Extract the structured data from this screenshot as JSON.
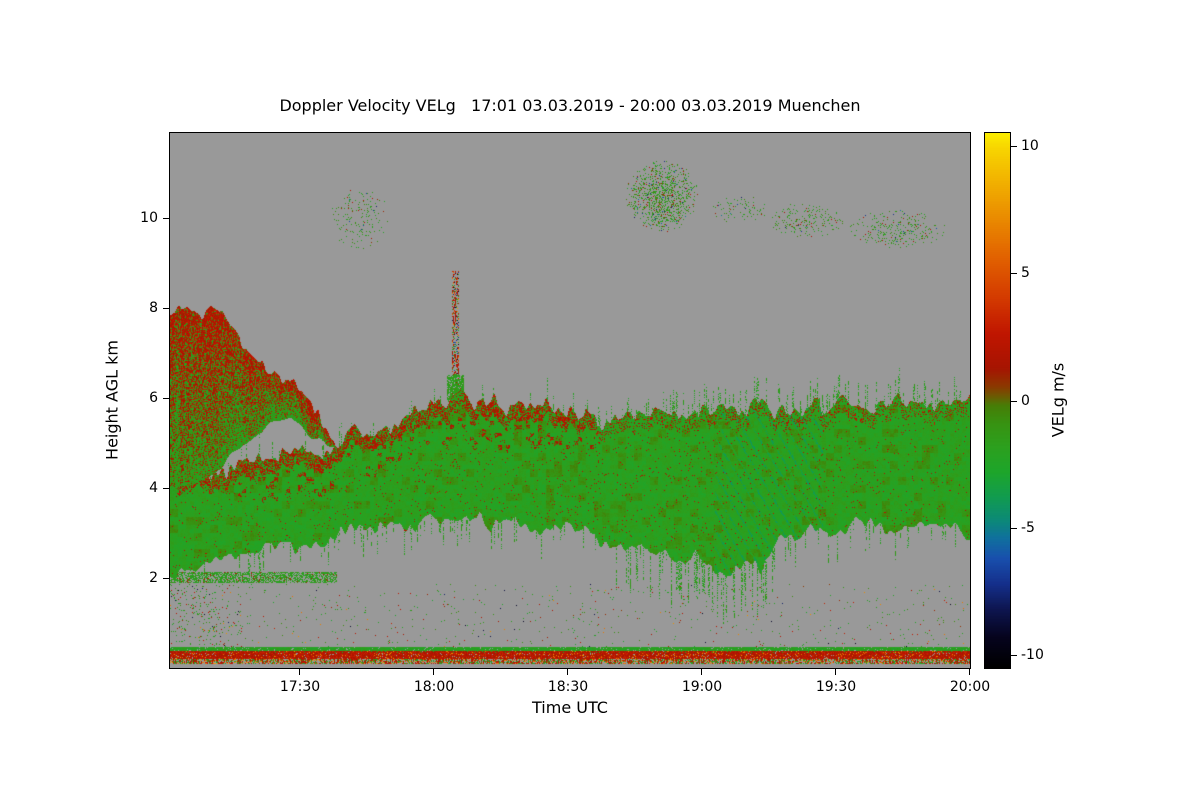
{
  "title": "Doppler Velocity VELg   17:01 03.03.2019 - 20:00 03.03.2019 Muenchen",
  "axes": {
    "x_label": "Time UTC",
    "y_label": "Height AGL km",
    "x_ticks": [
      {
        "label": "17:30",
        "t": 29
      },
      {
        "label": "18:00",
        "t": 59
      },
      {
        "label": "18:30",
        "t": 89
      },
      {
        "label": "19:00",
        "t": 119
      },
      {
        "label": "19:30",
        "t": 149
      },
      {
        "label": "20:00",
        "t": 179
      }
    ],
    "y_ticks": [
      {
        "label": "2",
        "km": 2
      },
      {
        "label": "4",
        "km": 4
      },
      {
        "label": "6",
        "km": 6
      },
      {
        "label": "8",
        "km": 8
      },
      {
        "label": "10",
        "km": 10
      }
    ]
  },
  "colorbar": {
    "label": "VELg m/s",
    "ticks": [
      {
        "label": "10",
        "v": 10
      },
      {
        "label": "5",
        "v": 5
      },
      {
        "label": "0",
        "v": 0
      },
      {
        "label": "-5",
        "v": -5
      },
      {
        "label": "-10",
        "v": -10
      }
    ],
    "v_min": -10.5,
    "v_max": 10.5,
    "stops": [
      [
        -10.5,
        "#000000"
      ],
      [
        -9.3,
        "#06041e"
      ],
      [
        -8.2,
        "#0e1650"
      ],
      [
        -7.2,
        "#15308c"
      ],
      [
        -6.2,
        "#1950ae"
      ],
      [
        -5.4,
        "#10719e"
      ],
      [
        -4.7,
        "#0c8a78"
      ],
      [
        -3.8,
        "#129c50"
      ],
      [
        -2.8,
        "#1ea62b"
      ],
      [
        -1.8,
        "#2da01e"
      ],
      [
        -0.9,
        "#389312"
      ],
      [
        -0.2,
        "#477e07"
      ],
      [
        0.15,
        "#6b5c03"
      ],
      [
        0.55,
        "#8c3800"
      ],
      [
        1.3,
        "#a81402"
      ],
      [
        2.6,
        "#c01600"
      ],
      [
        4.0,
        "#d43a00"
      ],
      [
        5.6,
        "#e26200"
      ],
      [
        7.1,
        "#ea8a00"
      ],
      [
        8.6,
        "#f2b200"
      ],
      [
        9.9,
        "#f8d600"
      ],
      [
        10.5,
        "#fcee00"
      ]
    ]
  },
  "chart_data": {
    "type": "heatmap",
    "title": "Doppler Velocity VELg   17:01 03.03.2019 - 20:00 03.03.2019 Muenchen",
    "site": "Muenchen",
    "variable": "VELg",
    "value_units": "m/s",
    "time_start": "17:01 03.03.2019",
    "time_end": "20:00 03.03.2019",
    "x_range_minutes": [
      0,
      179
    ],
    "y_range_km": [
      0,
      11.9
    ],
    "value_range_ms": [
      -10.5,
      10.5
    ],
    "no_signal_color": "#999999",
    "features": {
      "main_cloud_band": {
        "description": "Continuous mid-level cloud layer across the full period; interior Doppler velocity mostly -1 to -3 m/s (green) with patches near 0 (olive) and a positive-velocity red/orange fringe along the layer top, strongest 17:15-18:35; feathery spiky top and ragged bottom with tendrils 18:40-19:15",
        "top_km": [
          [
            0,
            4.1
          ],
          [
            8,
            4.3
          ],
          [
            15,
            4.5
          ],
          [
            22,
            4.65
          ],
          [
            29,
            4.75
          ],
          [
            36,
            4.95
          ],
          [
            43,
            5.2
          ],
          [
            50,
            5.45
          ],
          [
            57,
            5.75
          ],
          [
            62,
            5.9
          ],
          [
            64,
            6.15
          ],
          [
            66,
            5.9
          ],
          [
            70,
            5.95
          ],
          [
            76,
            5.85
          ],
          [
            82,
            5.9
          ],
          [
            89,
            5.8
          ],
          [
            94,
            5.6
          ],
          [
            99,
            5.45
          ],
          [
            103,
            5.55
          ],
          [
            107,
            5.65
          ],
          [
            111,
            5.75
          ],
          [
            115,
            5.6
          ],
          [
            119,
            5.65
          ],
          [
            124,
            5.8
          ],
          [
            129,
            5.85
          ],
          [
            134,
            5.8
          ],
          [
            139,
            5.85
          ],
          [
            144,
            5.8
          ],
          [
            149,
            5.85
          ],
          [
            154,
            5.9
          ],
          [
            159,
            5.85
          ],
          [
            164,
            5.9
          ],
          [
            169,
            5.88
          ],
          [
            174,
            5.9
          ],
          [
            179,
            5.88
          ]
        ],
        "bottom_km": [
          [
            0,
            1.95
          ],
          [
            6,
            2.1
          ],
          [
            12,
            2.35
          ],
          [
            18,
            2.55
          ],
          [
            24,
            2.65
          ],
          [
            29,
            2.7
          ],
          [
            36,
            2.95
          ],
          [
            43,
            3.05
          ],
          [
            50,
            3.15
          ],
          [
            57,
            3.2
          ],
          [
            64,
            3.25
          ],
          [
            71,
            3.3
          ],
          [
            78,
            3.25
          ],
          [
            84,
            3.2
          ],
          [
            89,
            3.2
          ],
          [
            94,
            2.95
          ],
          [
            99,
            2.9
          ],
          [
            103,
            2.75
          ],
          [
            107,
            2.8
          ],
          [
            111,
            2.65
          ],
          [
            115,
            2.6
          ],
          [
            119,
            2.55
          ],
          [
            124,
            2.3
          ],
          [
            128,
            2.15
          ],
          [
            132,
            2.4
          ],
          [
            136,
            2.7
          ],
          [
            141,
            2.95
          ],
          [
            146,
            3.05
          ],
          [
            151,
            3.1
          ],
          [
            156,
            3.15
          ],
          [
            161,
            3.2
          ],
          [
            166,
            3.15
          ],
          [
            171,
            3.1
          ],
          [
            175,
            3.05
          ],
          [
            179,
            3.0
          ]
        ],
        "interior_velocity_ms": [
          -2.8,
          -0.4
        ],
        "top_fringe_velocity_ms": [
          0.5,
          3.1
        ]
      },
      "left_plume": {
        "description": "Tall cloud mass 17:01-17:38 reaching ~8 km, red/positive velocities dominant near top, green below, descending and pinching off toward 17:35",
        "t_end_min": 37,
        "top_km": [
          [
            0,
            7.85
          ],
          [
            4,
            8.0
          ],
          [
            7,
            7.8
          ],
          [
            10,
            7.9
          ],
          [
            13,
            7.6
          ],
          [
            16,
            7.3
          ],
          [
            19,
            6.9
          ],
          [
            22,
            6.55
          ],
          [
            25,
            6.35
          ],
          [
            27,
            6.5
          ],
          [
            29,
            6.3
          ],
          [
            31,
            5.95
          ],
          [
            33,
            5.6
          ],
          [
            35,
            5.3
          ],
          [
            37,
            5.05
          ]
        ],
        "bottom_km": [
          [
            0,
            4.0
          ],
          [
            6,
            4.2
          ],
          [
            12,
            4.55
          ],
          [
            16,
            5.0
          ],
          [
            20,
            5.3
          ],
          [
            24,
            5.5
          ],
          [
            27,
            5.6
          ],
          [
            29,
            5.45
          ],
          [
            31,
            5.25
          ],
          [
            33,
            5.1
          ],
          [
            35,
            5.0
          ],
          [
            37,
            4.97
          ]
        ],
        "velocity_ms": [
          -2.6,
          3.3
        ]
      },
      "updraft_streak": {
        "description": "Narrow vertical streak of mixed strong velocities near 18:05 extending from the layer top to ~8.9 km",
        "t0_min": 63.2,
        "t1_min": 64.4,
        "km": [
          6.1,
          8.85
        ]
      },
      "high_cloud_patches": [
        {
          "t_min": [
            36,
            49
          ],
          "km": [
            9.3,
            10.7
          ],
          "density": 0.1
        },
        {
          "t_min": [
            102,
            118
          ],
          "km": [
            9.7,
            11.3
          ],
          "density": 0.34
        },
        {
          "t_min": [
            120,
            134
          ],
          "km": [
            9.9,
            10.5
          ],
          "density": 0.1
        },
        {
          "t_min": [
            133,
            151
          ],
          "km": [
            9.6,
            10.35
          ],
          "density": 0.16
        },
        {
          "t_min": [
            152,
            174
          ],
          "km": [
            9.35,
            10.2
          ],
          "density": 0.16
        }
      ],
      "low_level_line": {
        "description": "Thin green echo line near 2 km from 17:01 to ~17:38",
        "t_min": [
          0,
          37
        ],
        "km": [
          1.92,
          2.12
        ]
      },
      "ground_clutter": {
        "description": "Near-surface clutter stripe across full width: green line over red/orange lines",
        "km": [
          0.13,
          0.46
        ]
      },
      "low_speckle": {
        "description": "Sparse colored speckles 0.5-1.85 km, denser before 17:17",
        "km": [
          0.5,
          1.85
        ]
      },
      "noise_dot_count": 260
    }
  }
}
